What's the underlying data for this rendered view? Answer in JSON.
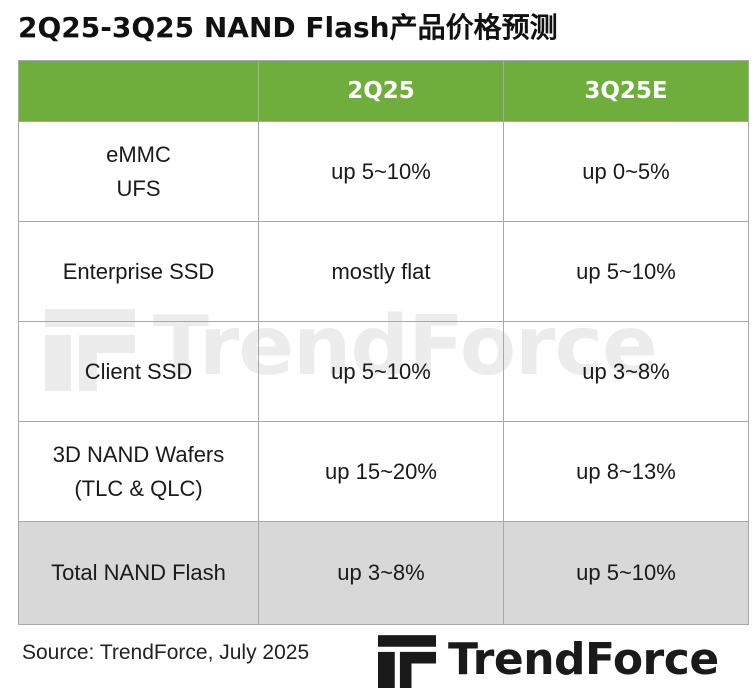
{
  "title": "2Q25-3Q25 NAND Flash产品价格预测",
  "watermark": "TrendForce",
  "table": {
    "headers": [
      "",
      "2Q25",
      "3Q25E"
    ],
    "rows": [
      {
        "product": [
          "eMMC",
          "UFS"
        ],
        "q2": "up 5~10%",
        "q3": "up 0~5%"
      },
      {
        "product": [
          "Enterprise SSD"
        ],
        "q2": "mostly flat",
        "q3": "up 5~10%"
      },
      {
        "product": [
          "Client SSD"
        ],
        "q2": "up 5~10%",
        "q3": "up 3~8%"
      },
      {
        "product": [
          "3D NAND Wafers",
          "(TLC & QLC)"
        ],
        "q2": "up 15~20%",
        "q3": "up 8~13%"
      }
    ],
    "total": {
      "product": "Total NAND Flash",
      "q2": "up 3~8%",
      "q3": "up 5~10%"
    }
  },
  "source": "Source: TrendForce, July 2025",
  "logo": {
    "text": "TrendForce",
    "icon": "trendforce-logo-icon"
  },
  "colors": {
    "header_green": "#6fad3c",
    "total_row_gray": "#d8d8d8",
    "border": "#a8a8a8"
  }
}
